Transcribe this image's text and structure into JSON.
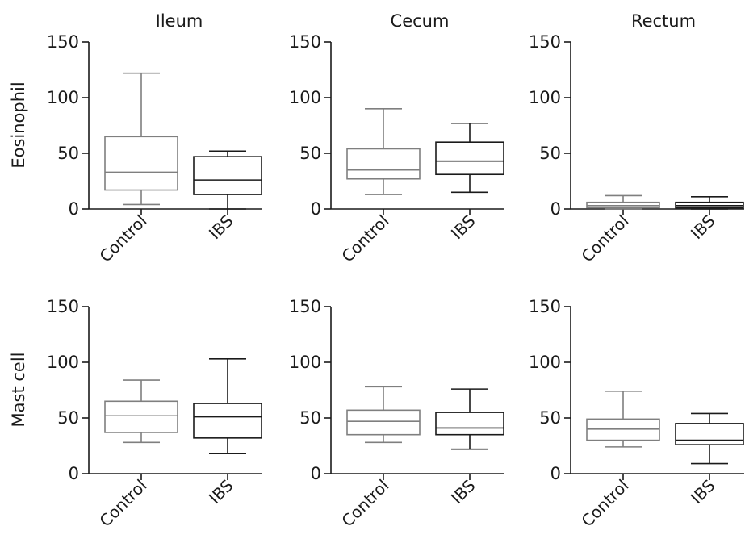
{
  "chart_data": {
    "type": "box",
    "columns": [
      "Ileum",
      "Cecum",
      "Rectum"
    ],
    "rows": [
      "Eosinophil",
      "Mast cell"
    ],
    "categories": [
      "Control",
      "IBS"
    ],
    "ylim": [
      0,
      150
    ],
    "yticks": [
      0,
      50,
      100,
      150
    ],
    "colors": {
      "Control": "#7f7f7f",
      "IBS": "#1a1a1a"
    },
    "panels": [
      {
        "row": "Eosinophil",
        "column": "Ileum",
        "boxes": [
          {
            "category": "Control",
            "min": 4,
            "q1": 17,
            "median": 33,
            "q3": 65,
            "max": 122
          },
          {
            "category": "IBS",
            "min": 0,
            "q1": 13,
            "median": 26,
            "q3": 47,
            "max": 52
          }
        ]
      },
      {
        "row": "Eosinophil",
        "column": "Cecum",
        "boxes": [
          {
            "category": "Control",
            "min": 13,
            "q1": 27,
            "median": 35,
            "q3": 54,
            "max": 90
          },
          {
            "category": "IBS",
            "min": 15,
            "q1": 31,
            "median": 43,
            "q3": 60,
            "max": 77
          }
        ]
      },
      {
        "row": "Eosinophil",
        "column": "Rectum",
        "boxes": [
          {
            "category": "Control",
            "min": 0,
            "q1": 1,
            "median": 3,
            "q3": 6,
            "max": 12
          },
          {
            "category": "IBS",
            "min": 0,
            "q1": 1,
            "median": 3,
            "q3": 6,
            "max": 11
          }
        ]
      },
      {
        "row": "Mast cell",
        "column": "Ileum",
        "boxes": [
          {
            "category": "Control",
            "min": 28,
            "q1": 37,
            "median": 52,
            "q3": 65,
            "max": 84
          },
          {
            "category": "IBS",
            "min": 18,
            "q1": 32,
            "median": 51,
            "q3": 63,
            "max": 103
          }
        ]
      },
      {
        "row": "Mast cell",
        "column": "Cecum",
        "boxes": [
          {
            "category": "Control",
            "min": 28,
            "q1": 35,
            "median": 47,
            "q3": 57,
            "max": 78
          },
          {
            "category": "IBS",
            "min": 22,
            "q1": 35,
            "median": 41,
            "q3": 55,
            "max": 76
          }
        ]
      },
      {
        "row": "Mast cell",
        "column": "Rectum",
        "boxes": [
          {
            "category": "Control",
            "min": 24,
            "q1": 30,
            "median": 40,
            "q3": 49,
            "max": 74
          },
          {
            "category": "IBS",
            "min": 9,
            "q1": 26,
            "median": 30,
            "q3": 45,
            "max": 54
          }
        ]
      }
    ]
  }
}
